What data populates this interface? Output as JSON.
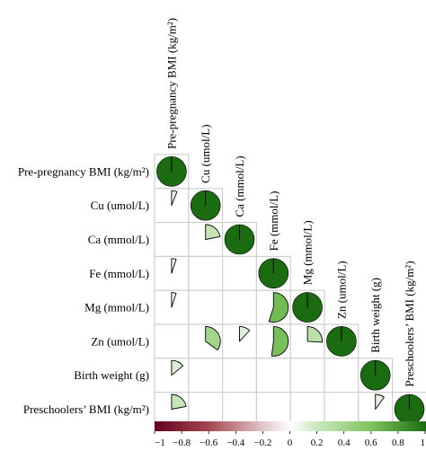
{
  "chart_data": {
    "type": "correlation-matrix-pie",
    "layout": "lower-triangle",
    "variables": [
      "Pre-pregnancy BMI (kg/m²)",
      "Cu (umol/L)",
      "Ca (mmol/L)",
      "Fe (mmol/L)",
      "Mg (mmol/L)",
      "Zn (umol/L)",
      "Birth weight (g)",
      "Preschoolers’ BMI (kg/m²)"
    ],
    "row_labels": [
      "Pre-pregnancy BMI (kg/m²)",
      "Cu (umol/L)",
      "Ca (mmol/L)",
      "Fe (mmol/L)",
      "Mg (mmol/L)",
      "Zn (umol/L)",
      "Birth weight (g)",
      "Preschoolers’ BMI (kg/m²)"
    ],
    "column_labels": [
      "Pre-pregnancy BMI (kg/m²)",
      "Cu (umol/L)",
      "Ca (mmol/L)",
      "Fe (mmol/L)",
      "Mg (mmol/L)",
      "Zn (umol/L)",
      "Birth weight (g)",
      "Preschoolers’ BMI (kg/m²)"
    ],
    "cells": [
      {
        "row": 0,
        "col": 0,
        "r": 1.0
      },
      {
        "row": 1,
        "col": 0,
        "r": 0.06
      },
      {
        "row": 1,
        "col": 1,
        "r": 1.0
      },
      {
        "row": 2,
        "col": 1,
        "r": 0.22
      },
      {
        "row": 2,
        "col": 2,
        "r": 1.0
      },
      {
        "row": 3,
        "col": 0,
        "r": 0.05
      },
      {
        "row": 3,
        "col": 3,
        "r": 1.0
      },
      {
        "row": 4,
        "col": 0,
        "r": 0.05
      },
      {
        "row": 4,
        "col": 3,
        "r": 0.55
      },
      {
        "row": 4,
        "col": 4,
        "r": 1.0
      },
      {
        "row": 5,
        "col": 1,
        "r": 0.35
      },
      {
        "row": 5,
        "col": 2,
        "r": 0.12
      },
      {
        "row": 5,
        "col": 3,
        "r": 0.52
      },
      {
        "row": 5,
        "col": 4,
        "r": 0.26
      },
      {
        "row": 5,
        "col": 5,
        "r": 1.0
      },
      {
        "row": 6,
        "col": 0,
        "r": 0.14
      },
      {
        "row": 6,
        "col": 6,
        "r": 1.0
      },
      {
        "row": 7,
        "col": 0,
        "r": 0.22
      },
      {
        "row": 7,
        "col": 6,
        "r": 0.1
      },
      {
        "row": 7,
        "col": 7,
        "r": 1.0
      }
    ],
    "colorbar": {
      "range": [
        -1,
        1
      ],
      "tick_labels": [
        "−1",
        "−0.8",
        "−0.6",
        "−0.4",
        "−0.2",
        "0",
        "0.2",
        "0.4",
        "0.6",
        "0.8",
        "1"
      ],
      "tick_values": [
        -1,
        -0.8,
        -0.6,
        -0.4,
        -0.2,
        0,
        0.2,
        0.4,
        0.6,
        0.8,
        1
      ],
      "colors": {
        "negative": "#67001f",
        "neutral": "#ffffff",
        "positive": "#1b6b10"
      }
    },
    "grid": true,
    "pie_outline_color": "#000000",
    "grid_color": "#cfcfcf"
  }
}
